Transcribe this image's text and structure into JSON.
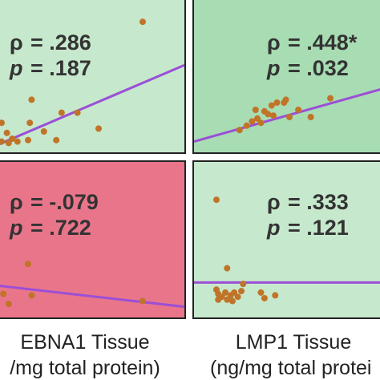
{
  "colors": {
    "light_green": "#c6e8cc",
    "mid_green": "#a8dcb3",
    "pink": "#e9758a",
    "dot": "#c07428",
    "line": "#9b4fd6"
  },
  "x_labels": {
    "left_line1": "EBNA1 Tissue",
    "left_line2": "/mg total protein)",
    "right_line1": "LMP1 Tissue",
    "right_line2": "(ng/mg total protei"
  },
  "chart_data": [
    {
      "type": "scatter",
      "panel": "top-left",
      "background": "light_green",
      "rho_symbol": "ρ",
      "rho": "= .286",
      "p_symbol": "p",
      "p": "= .187",
      "xlim": [
        0,
        1
      ],
      "ylim": [
        0,
        1
      ],
      "points": [
        [
          0.8,
          0.86
        ],
        [
          0.0,
          0.16
        ],
        [
          0.03,
          0.09
        ],
        [
          0.06,
          0.05
        ],
        [
          0.09,
          0.03
        ],
        [
          0.15,
          0.04
        ],
        [
          0.16,
          0.16
        ],
        [
          0.17,
          0.32
        ],
        [
          0.24,
          0.1
        ],
        [
          0.31,
          0.04
        ],
        [
          0.34,
          0.23
        ],
        [
          0.43,
          0.23
        ],
        [
          0.55,
          0.12
        ],
        [
          0.0,
          0.03
        ],
        [
          0.04,
          0.02
        ]
      ],
      "trend": [
        [
          0,
          0.0
        ],
        [
          1,
          0.56
        ]
      ]
    },
    {
      "type": "scatter",
      "panel": "top-right",
      "background": "mid_green",
      "rho_symbol": "ρ",
      "rho": "= .448*",
      "p_symbol": "p",
      "p": "= .032",
      "xlim": [
        0,
        1
      ],
      "ylim": [
        0,
        1
      ],
      "points": [
        [
          0.73,
          0.33
        ],
        [
          0.22,
          0.11
        ],
        [
          0.26,
          0.14
        ],
        [
          0.29,
          0.17
        ],
        [
          0.32,
          0.19
        ],
        [
          0.34,
          0.16
        ],
        [
          0.36,
          0.24
        ],
        [
          0.38,
          0.22
        ],
        [
          0.4,
          0.28
        ],
        [
          0.43,
          0.3
        ],
        [
          0.47,
          0.3
        ],
        [
          0.48,
          0.32
        ],
        [
          0.5,
          0.2
        ],
        [
          0.55,
          0.25
        ],
        [
          0.62,
          0.2
        ],
        [
          0.31,
          0.25
        ],
        [
          0.41,
          0.21
        ]
      ],
      "trend": [
        [
          0,
          0.03
        ],
        [
          1,
          0.4
        ]
      ]
    },
    {
      "type": "scatter",
      "panel": "bottom-left",
      "background": "pink",
      "rho_symbol": "ρ",
      "rho": "= -.079",
      "p_symbol": "p",
      "p": "= .722",
      "xlim": [
        0,
        1
      ],
      "ylim": [
        0,
        1
      ],
      "points": [
        [
          0.15,
          0.33
        ],
        [
          0.04,
          0.05
        ],
        [
          0.17,
          0.11
        ],
        [
          0.8,
          0.07
        ],
        [
          0.01,
          0.12
        ]
      ],
      "trend": [
        [
          0,
          0.18
        ],
        [
          1,
          0.03
        ]
      ]
    },
    {
      "type": "scatter",
      "panel": "bottom-right",
      "background": "light_green",
      "rho_symbol": "ρ",
      "rho": "= .333",
      "p_symbol": "p",
      "p": "= .121",
      "xlim": [
        0,
        1
      ],
      "ylim": [
        0,
        1
      ],
      "points": [
        [
          0.09,
          0.78
        ],
        [
          0.15,
          0.3
        ],
        [
          0.09,
          0.15
        ],
        [
          0.1,
          0.12
        ],
        [
          0.12,
          0.1
        ],
        [
          0.14,
          0.13
        ],
        [
          0.15,
          0.08
        ],
        [
          0.17,
          0.11
        ],
        [
          0.19,
          0.13
        ],
        [
          0.21,
          0.1
        ],
        [
          0.23,
          0.14
        ],
        [
          0.24,
          0.19
        ],
        [
          0.34,
          0.13
        ],
        [
          0.36,
          0.09
        ],
        [
          0.42,
          0.11
        ],
        [
          0.1,
          0.08
        ],
        [
          0.18,
          0.07
        ]
      ],
      "trend": [
        [
          0,
          0.2
        ],
        [
          1,
          0.2
        ]
      ]
    }
  ]
}
